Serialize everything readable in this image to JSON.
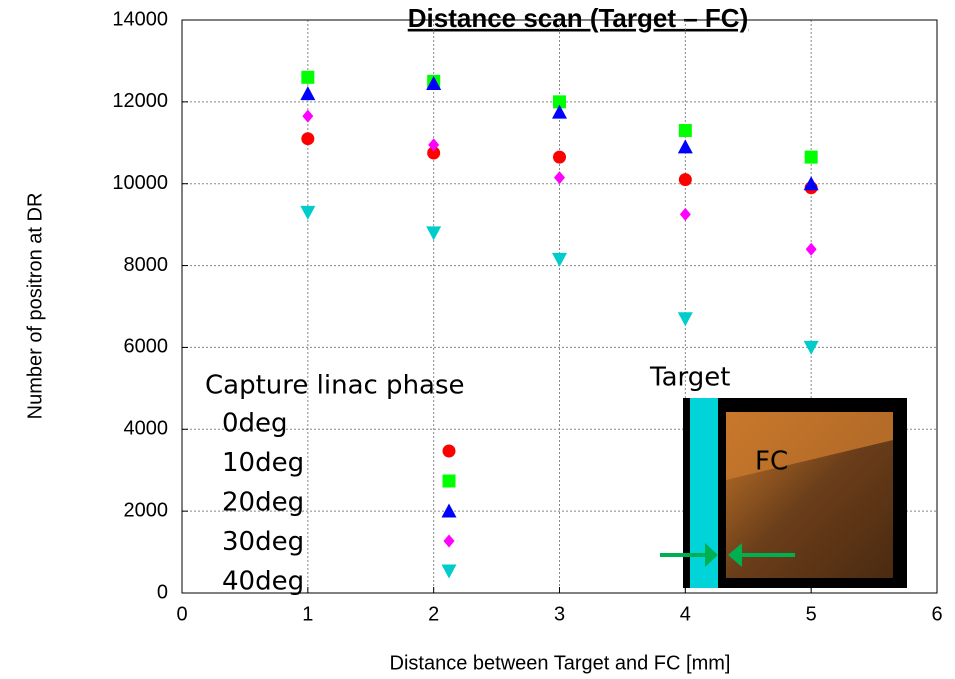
{
  "chart_data": {
    "type": "scatter",
    "title": "Distance scan (Target – FC)",
    "xlabel": "Distance between Target and FC [mm]",
    "ylabel": "Number of positron at DR",
    "legend_title": "Capture linac phase",
    "x": [
      1,
      2,
      3,
      4,
      5
    ],
    "series": [
      {
        "name": "0deg",
        "color": "#ff0000",
        "marker": "circle",
        "values": [
          11100,
          10750,
          10650,
          10100,
          9900
        ]
      },
      {
        "name": "10deg",
        "color": "#00ff00",
        "marker": "square",
        "values": [
          12600,
          12500,
          12000,
          11300,
          10650
        ]
      },
      {
        "name": "20deg",
        "color": "#0000ff",
        "marker": "triangle-up",
        "values": [
          12200,
          12450,
          11750,
          10900,
          10000
        ]
      },
      {
        "name": "30deg",
        "color": "#ff00ff",
        "marker": "diamond",
        "values": [
          11650,
          10950,
          10150,
          9250,
          8400
        ]
      },
      {
        "name": "40deg",
        "color": "#00cccc",
        "marker": "triangle-down",
        "values": [
          9300,
          8800,
          8150,
          6700,
          6000
        ]
      }
    ],
    "xlim": [
      0,
      6
    ],
    "ylim": [
      0,
      14000
    ],
    "xticks": [
      0,
      1,
      2,
      3,
      4,
      5,
      6
    ],
    "yticks": [
      0,
      2000,
      4000,
      6000,
      8000,
      10000,
      12000,
      14000
    ],
    "grid": true,
    "inset_labels": {
      "target": "Target",
      "fc": "FC"
    }
  }
}
